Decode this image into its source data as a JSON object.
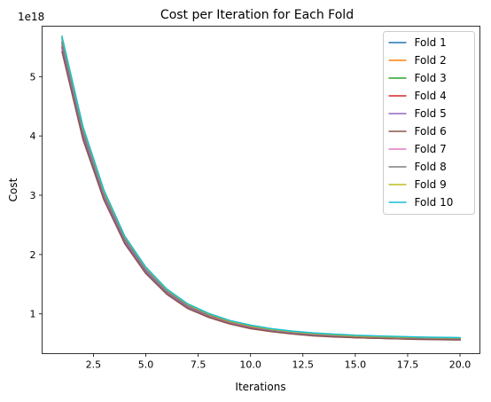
{
  "chart_data": {
    "type": "line",
    "title": "Cost per Iteration for Each Fold",
    "xlabel": "Iterations",
    "ylabel": "Cost",
    "y_offset_text": "1e18",
    "xlim": [
      0.05,
      20.95
    ],
    "ylim": [
      0.33,
      5.85
    ],
    "x_ticks": [
      2.5,
      5.0,
      7.5,
      10.0,
      12.5,
      15.0,
      17.5,
      20.0
    ],
    "x_tick_labels": [
      "2.5",
      "5.0",
      "7.5",
      "10.0",
      "12.5",
      "15.0",
      "17.5",
      "20.0"
    ],
    "y_ticks": [
      1,
      2,
      3,
      4,
      5
    ],
    "y_tick_labels": [
      "1",
      "2",
      "3",
      "4",
      "5"
    ],
    "grid": false,
    "legend_position": "top-right",
    "x": [
      1,
      2,
      3,
      4,
      5,
      6,
      7,
      8,
      9,
      10,
      11,
      12,
      13,
      14,
      15,
      16,
      17,
      18,
      19,
      20
    ],
    "series": [
      {
        "name": "Fold 1",
        "color": "#1f77b4",
        "values": [
          5.56,
          4.06,
          3.02,
          2.26,
          1.74,
          1.38,
          1.14,
          0.98,
          0.86,
          0.78,
          0.73,
          0.69,
          0.66,
          0.64,
          0.62,
          0.61,
          0.6,
          0.595,
          0.59,
          0.585
        ]
      },
      {
        "name": "Fold 2",
        "color": "#ff7f0e",
        "values": [
          5.52,
          4.03,
          2.99,
          2.23,
          1.72,
          1.36,
          1.12,
          0.96,
          0.85,
          0.77,
          0.72,
          0.68,
          0.65,
          0.63,
          0.61,
          0.6,
          0.59,
          0.585,
          0.58,
          0.575
        ]
      },
      {
        "name": "Fold 3",
        "color": "#2ca02c",
        "values": [
          5.64,
          4.12,
          3.06,
          2.29,
          1.77,
          1.4,
          1.16,
          0.99,
          0.88,
          0.8,
          0.74,
          0.7,
          0.67,
          0.65,
          0.63,
          0.62,
          0.61,
          0.6,
          0.595,
          0.59
        ]
      },
      {
        "name": "Fold 4",
        "color": "#d62728",
        "values": [
          5.48,
          3.99,
          2.96,
          2.21,
          1.7,
          1.35,
          1.11,
          0.95,
          0.84,
          0.76,
          0.71,
          0.67,
          0.64,
          0.62,
          0.6,
          0.59,
          0.58,
          0.575,
          0.57,
          0.565
        ]
      },
      {
        "name": "Fold 5",
        "color": "#9467bd",
        "values": [
          5.5,
          4.01,
          2.97,
          2.22,
          1.71,
          1.35,
          1.11,
          0.95,
          0.84,
          0.76,
          0.71,
          0.67,
          0.64,
          0.62,
          0.6,
          0.59,
          0.58,
          0.575,
          0.57,
          0.565
        ]
      },
      {
        "name": "Fold 6",
        "color": "#8c564b",
        "values": [
          5.42,
          3.94,
          2.92,
          2.18,
          1.68,
          1.33,
          1.09,
          0.94,
          0.83,
          0.75,
          0.7,
          0.66,
          0.63,
          0.61,
          0.6,
          0.59,
          0.58,
          0.57,
          0.565,
          0.56
        ]
      },
      {
        "name": "Fold 7",
        "color": "#e377c2",
        "values": [
          5.6,
          4.09,
          3.04,
          2.27,
          1.75,
          1.39,
          1.15,
          0.98,
          0.87,
          0.79,
          0.73,
          0.69,
          0.66,
          0.64,
          0.62,
          0.61,
          0.6,
          0.595,
          0.59,
          0.585
        ]
      },
      {
        "name": "Fold 8",
        "color": "#7f7f7f",
        "values": [
          5.58,
          4.07,
          3.03,
          2.26,
          1.74,
          1.38,
          1.14,
          0.98,
          0.87,
          0.79,
          0.73,
          0.69,
          0.66,
          0.64,
          0.62,
          0.61,
          0.6,
          0.595,
          0.59,
          0.585
        ]
      },
      {
        "name": "Fold 9",
        "color": "#bcbd22",
        "values": [
          5.66,
          4.14,
          3.07,
          2.3,
          1.78,
          1.41,
          1.16,
          1.0,
          0.88,
          0.8,
          0.74,
          0.7,
          0.67,
          0.65,
          0.63,
          0.62,
          0.61,
          0.605,
          0.6,
          0.595
        ]
      },
      {
        "name": "Fold 10",
        "color": "#17becf",
        "values": [
          5.68,
          4.16,
          3.09,
          2.31,
          1.79,
          1.42,
          1.17,
          1.01,
          0.89,
          0.81,
          0.75,
          0.71,
          0.68,
          0.66,
          0.64,
          0.63,
          0.62,
          0.61,
          0.605,
          0.6
        ]
      }
    ]
  }
}
